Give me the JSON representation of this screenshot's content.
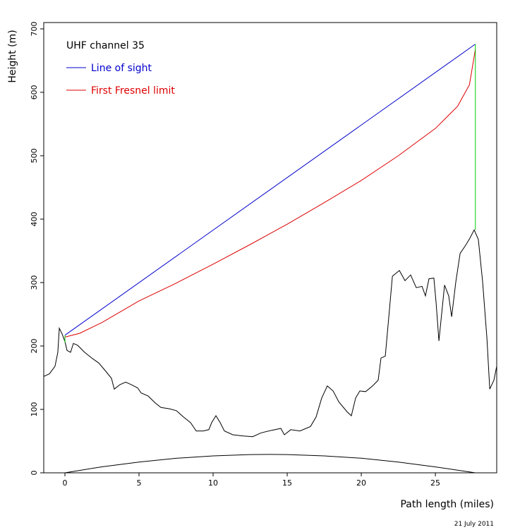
{
  "chart_data": {
    "type": "line",
    "legend_title": "UHF channel 35",
    "xlabel": "Path length (miles)",
    "ylabel": "Height (m)",
    "date": "21 July 2011",
    "xlim": [
      -1.43,
      29.14
    ],
    "ylim": [
      0,
      710
    ],
    "xticks": [
      0,
      5,
      10,
      15,
      20,
      25
    ],
    "yticks": [
      0,
      100,
      200,
      300,
      400,
      500,
      600,
      700
    ],
    "series": [
      {
        "color": "#000000",
        "x": [
          -1.43,
          -1.05,
          -0.67,
          -0.48,
          -0.38,
          -0.19,
          0,
          0.14,
          0.38,
          0.57,
          0.86,
          1.33,
          1.81,
          2.29,
          2.76,
          3.14,
          3.33,
          3.71,
          4.1,
          4.48,
          4.9,
          5.14,
          5.62,
          6.1,
          6.48,
          7.05,
          7.52,
          8.0,
          8.48,
          8.86,
          9.33,
          9.71,
          9.9,
          10.19,
          10.48,
          10.76,
          11.33,
          12.05,
          12.67,
          13.24,
          13.95,
          14.57,
          14.81,
          15.24,
          15.86,
          16.57,
          16.95,
          17.33,
          17.71,
          18.1,
          18.48,
          19.05,
          19.33,
          19.62,
          19.9,
          20.29,
          20.76,
          21.14,
          21.33,
          21.62,
          21.9,
          22.1,
          22.57,
          22.95,
          23.33,
          23.71,
          24.1,
          24.33,
          24.57,
          24.9,
          25.05,
          25.24,
          25.62,
          25.9,
          26.1,
          26.38,
          26.67,
          27.05,
          27.33,
          27.62,
          27.9,
          28.19,
          28.48,
          28.67,
          28.95,
          29.14
        ],
        "values": [
          152,
          156,
          168,
          190,
          228,
          219,
          207,
          193,
          190,
          204,
          201,
          190,
          181,
          173,
          160,
          149,
          132,
          139,
          143,
          139,
          134,
          126,
          121,
          110,
          103,
          101,
          98,
          88,
          79,
          66,
          66,
          68,
          79,
          90,
          79,
          66,
          60,
          58,
          57,
          63,
          67,
          70,
          60,
          68,
          66,
          73,
          88,
          118,
          137,
          129,
          112,
          96,
          90,
          118,
          129,
          128,
          137,
          146,
          181,
          184,
          257,
          310,
          319,
          303,
          312,
          292,
          294,
          279,
          306,
          307,
          268,
          208,
          296,
          279,
          246,
          301,
          346,
          359,
          370,
          383,
          368,
          301,
          212,
          132,
          146,
          168
        ]
      },
      {
        "color": "#000000",
        "x": [
          0,
          2.5,
          5,
          7.5,
          10,
          12.5,
          13.85,
          15,
          17.5,
          20,
          22.5,
          25,
          27.7
        ],
        "values": [
          0,
          9.5,
          17,
          22.9,
          26.7,
          28.8,
          29,
          28.8,
          26.7,
          23,
          17,
          9.3,
          0
        ]
      },
      {
        "name": "Line of sight",
        "color": "#0000cc",
        "x": [
          0,
          27.7
        ],
        "values": [
          217,
          676
        ]
      },
      {
        "name": "First Fresnel limit",
        "color": "#dd0000",
        "x": [
          0,
          1,
          2.5,
          5,
          7.5,
          10,
          12.5,
          15,
          17.5,
          20,
          22.5,
          25,
          26.5,
          27.3,
          27.7
        ],
        "values": [
          214,
          220,
          237,
          271,
          299,
          329,
          360,
          392,
          426,
          461,
          500,
          543,
          578,
          612,
          668
        ]
      },
      {
        "color": "#00cc00",
        "x": [
          0,
          0
        ],
        "values": [
          205,
          217
        ]
      },
      {
        "color": "#00cc00",
        "x": [
          27.7,
          27.7
        ],
        "values": [
          383,
          676
        ]
      }
    ]
  }
}
